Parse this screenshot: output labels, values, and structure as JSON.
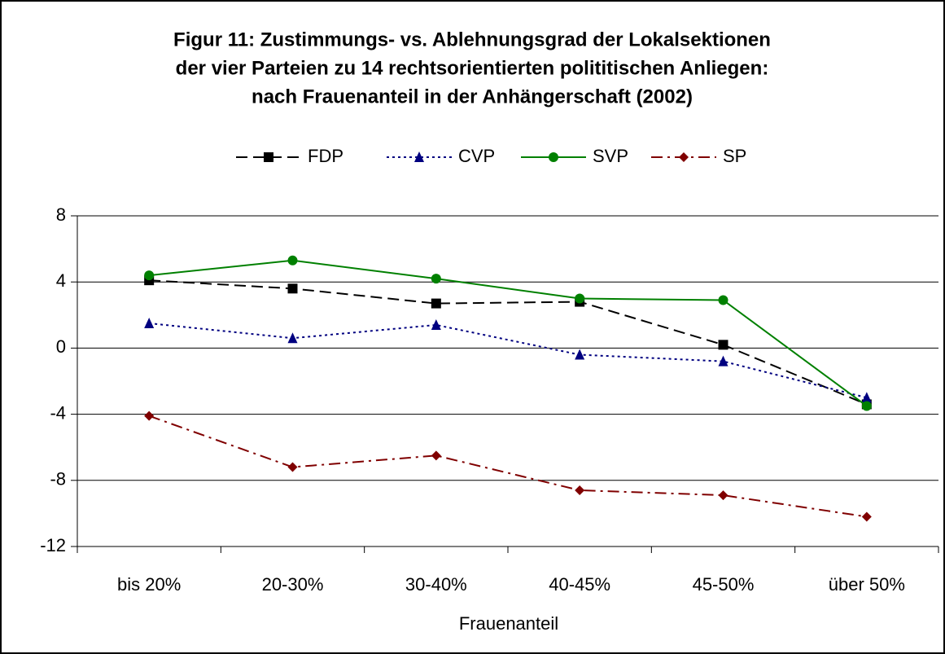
{
  "chart_data": {
    "type": "line",
    "title": [
      "Figur 11: Zustimmungs- vs. Ablehnungsgrad der Lokalsektionen",
      "der vier Parteien zu 14 rechtsorientierten polititischen Anliegen:",
      "nach Frauenanteil in der  Anhängerschaft (2002)"
    ],
    "x_label": "Frauenanteil",
    "categories": [
      "bis 20%",
      "20-30%",
      "30-40%",
      "40-45%",
      "45-50%",
      "über 50%"
    ],
    "series": [
      {
        "name": "FDP",
        "color": "#000000",
        "marker": "square",
        "dash": "dashed",
        "values": [
          4.1,
          3.6,
          2.7,
          2.8,
          0.2,
          -3.4
        ]
      },
      {
        "name": "CVP",
        "color": "#000080",
        "marker": "triangle",
        "dash": "dotted",
        "values": [
          1.5,
          0.6,
          1.4,
          -0.4,
          -0.8,
          -3.0
        ]
      },
      {
        "name": "SVP",
        "color": "#008000",
        "marker": "circle",
        "dash": "solid",
        "values": [
          4.4,
          5.3,
          4.2,
          3.0,
          2.9,
          -3.5
        ]
      },
      {
        "name": "SP",
        "color": "#800000",
        "marker": "diamond",
        "dash": "dashdot",
        "values": [
          -4.1,
          -7.2,
          -6.5,
          -8.6,
          -8.9,
          -10.2
        ]
      }
    ],
    "ylim": [
      -12,
      8
    ],
    "yticks": [
      -12,
      -8,
      -4,
      0,
      4,
      8
    ],
    "grid": true,
    "legend": "top"
  }
}
